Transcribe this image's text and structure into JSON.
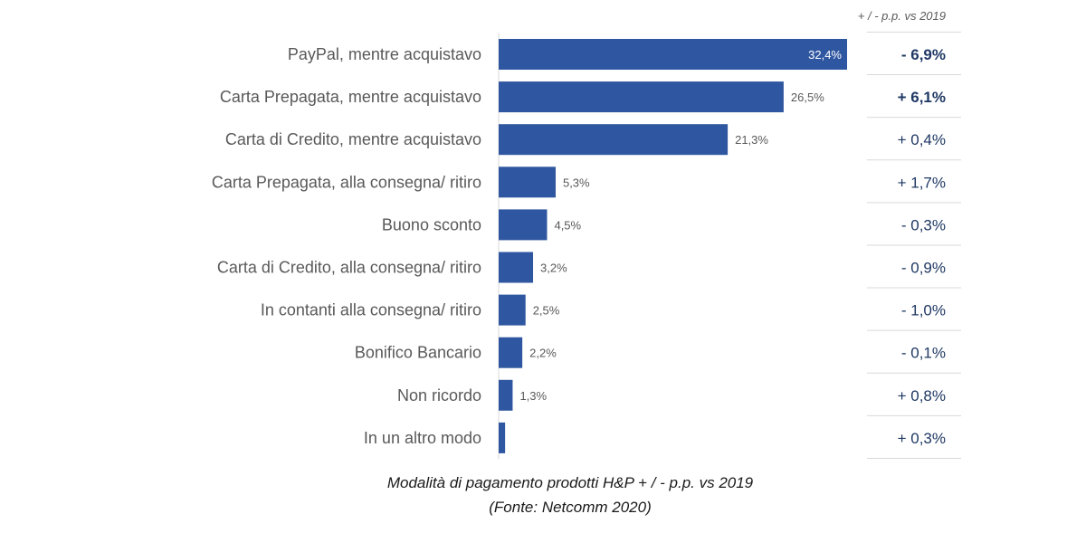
{
  "chart_data": {
    "type": "bar",
    "orientation": "horizontal",
    "categories": [
      "PayPal, mentre acquistavo",
      "Carta Prepagata, mentre acquistavo",
      "Carta di Credito, mentre acquistavo",
      "Carta Prepagata, alla consegna/ ritiro",
      "Buono sconto",
      "Carta di Credito, alla consegna/ ritiro",
      "In contanti alla consegna/ ritiro",
      "Bonifico Bancario",
      "Non ricordo",
      "In un altro modo"
    ],
    "values": [
      32.4,
      26.5,
      21.3,
      5.3,
      4.5,
      3.2,
      2.5,
      2.2,
      1.3,
      0.6
    ],
    "value_labels": [
      "32,4%",
      "26,5%",
      "21,3%",
      "5,3%",
      "4,5%",
      "3,2%",
      "2,5%",
      "2,2%",
      "1,3%",
      ""
    ],
    "delta_header": "+ / - p.p. vs 2019",
    "deltas": [
      "- 6,9%",
      "+ 6,1%",
      "+ 0,4%",
      "+ 1,7%",
      "- 0,3%",
      "- 0,9%",
      "- 1,0%",
      "- 0,1%",
      "+ 0,8%",
      "+ 0,3%"
    ],
    "deltas_bold": [
      true,
      true,
      false,
      false,
      false,
      false,
      false,
      false,
      false,
      false
    ],
    "xlim": [
      0,
      32.4
    ],
    "bar_color": "#2F56A0",
    "grid": false,
    "legend": "none"
  },
  "caption": {
    "line1": "Modalità di pagamento prodotti H&P + / - p.p. vs 2019",
    "line2": "(Fonte: Netcomm 2020)"
  }
}
